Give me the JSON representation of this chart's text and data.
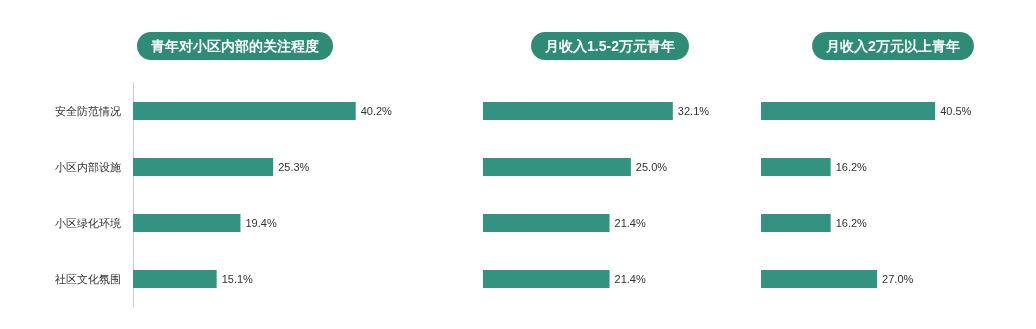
{
  "chart_data": [
    {
      "type": "bar",
      "orientation": "horizontal",
      "title": "青年对小区内部的关注程度",
      "categories": [
        "安全防范情况",
        "小区内部设施",
        "小区绿化环境",
        "社区文化氛围"
      ],
      "values": [
        40.2,
        25.3,
        19.4,
        15.1
      ],
      "value_labels": [
        "40.2%",
        "25.3%",
        "19.4%",
        "15.1%"
      ],
      "color": "#339380",
      "grid": false,
      "tick_labels": "y"
    },
    {
      "type": "bar",
      "orientation": "horizontal",
      "title": "月收入1.5-2万元青年",
      "categories": [
        null,
        null,
        null,
        null
      ],
      "values": [
        32.1,
        25.0,
        21.4,
        21.4
      ],
      "value_labels": [
        "32.1%",
        "25.0%",
        "21.4%",
        "21.4%"
      ],
      "color": "#339380",
      "grid": false,
      "tick_labels": false
    },
    {
      "type": "bar",
      "orientation": "horizontal",
      "title": "月收入2万元以上青年",
      "categories": [
        null,
        null,
        null,
        null
      ],
      "values": [
        40.5,
        16.2,
        16.2,
        27.0
      ],
      "value_labels": [
        "40.5%",
        "16.2%",
        "16.2%",
        "27.0%"
      ],
      "color": "#339380",
      "grid": false,
      "tick_labels": false
    }
  ]
}
